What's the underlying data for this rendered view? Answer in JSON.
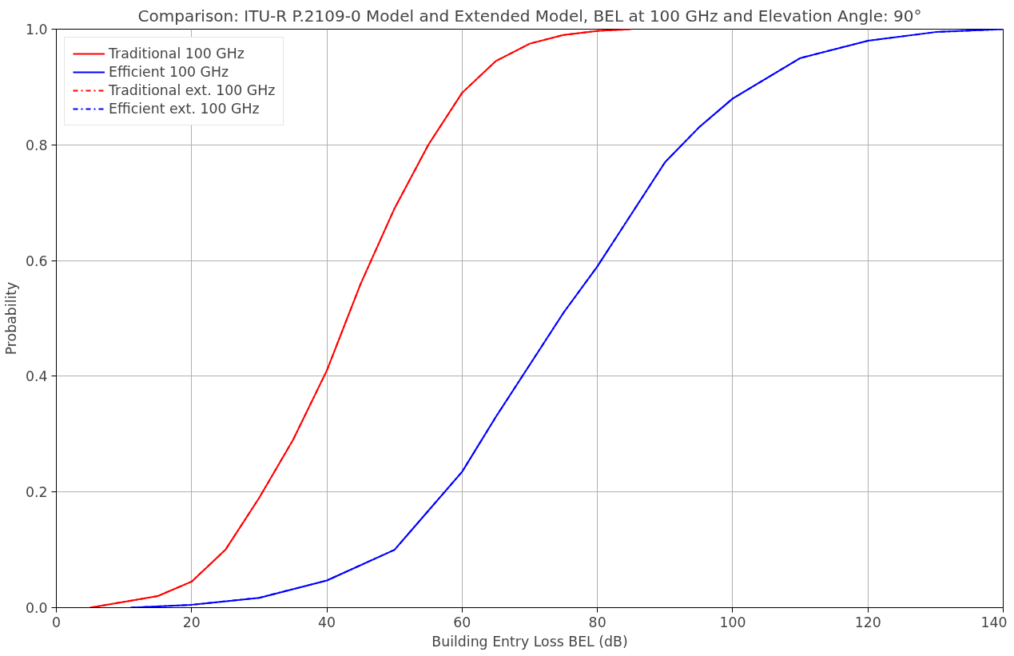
{
  "chart_data": {
    "type": "line",
    "title": "Comparison: ITU-R P.2109-0 Model and Extended Model, BEL at 100 GHz and Elevation Angle: 90°",
    "xlabel": "Building Entry Loss BEL (dB)",
    "ylabel": "Probability",
    "xlim": [
      0,
      140
    ],
    "ylim": [
      0,
      1.0
    ],
    "xticks": [
      0,
      20,
      40,
      60,
      80,
      100,
      120,
      140
    ],
    "yticks": [
      {
        "value": 0,
        "label": "0.0"
      },
      0.2,
      0.4,
      0.6,
      0.8,
      {
        "value": 1,
        "label": "1.0"
      }
    ],
    "grid": true,
    "legend": "top left",
    "marker": "none",
    "series": [
      {
        "name": "Traditional 100 GHz",
        "color": "#ff0000",
        "line_style": "solid",
        "x": [
          5,
          10,
          15,
          20,
          25,
          30,
          35,
          40,
          45,
          50,
          55,
          60,
          65,
          70,
          75,
          80,
          85
        ],
        "values": [
          0,
          0.01,
          0.02,
          0.045,
          0.1,
          0.19,
          0.29,
          0.41,
          0.56,
          0.69,
          0.8,
          0.89,
          0.945,
          0.975,
          0.99,
          0.997,
          1.0
        ]
      },
      {
        "name": "Efficient 100 GHz",
        "color": "#0000ff",
        "line_style": "solid",
        "x": [
          11,
          20,
          30,
          40,
          50,
          60,
          65,
          70,
          75,
          80,
          85,
          90,
          95,
          100,
          110,
          120,
          130,
          140
        ],
        "values": [
          0,
          0.005,
          0.017,
          0.047,
          0.1,
          0.235,
          0.33,
          0.42,
          0.51,
          0.59,
          0.68,
          0.77,
          0.83,
          0.88,
          0.95,
          0.98,
          0.995,
          1.0
        ]
      },
      {
        "name": "Traditional ext. 100 GHz",
        "color": "#ff0000",
        "line_style": "dashdot",
        "x": [
          5,
          10,
          15,
          20,
          25,
          30,
          35,
          40,
          45,
          50,
          55,
          60,
          65,
          70,
          75,
          80,
          85
        ],
        "values": [
          0,
          0.01,
          0.02,
          0.045,
          0.1,
          0.19,
          0.29,
          0.41,
          0.56,
          0.69,
          0.8,
          0.89,
          0.945,
          0.975,
          0.99,
          0.997,
          1.0
        ]
      },
      {
        "name": "Efficient ext. 100 GHz",
        "color": "#0000ff",
        "line_style": "dashdot",
        "x": [
          11,
          20,
          30,
          40,
          50,
          60,
          65,
          70,
          75,
          80,
          85,
          90,
          95,
          100,
          110,
          120,
          130,
          140
        ],
        "values": [
          0,
          0.005,
          0.017,
          0.047,
          0.1,
          0.235,
          0.33,
          0.42,
          0.51,
          0.59,
          0.68,
          0.77,
          0.83,
          0.88,
          0.95,
          0.98,
          0.995,
          1.0
        ]
      }
    ]
  }
}
